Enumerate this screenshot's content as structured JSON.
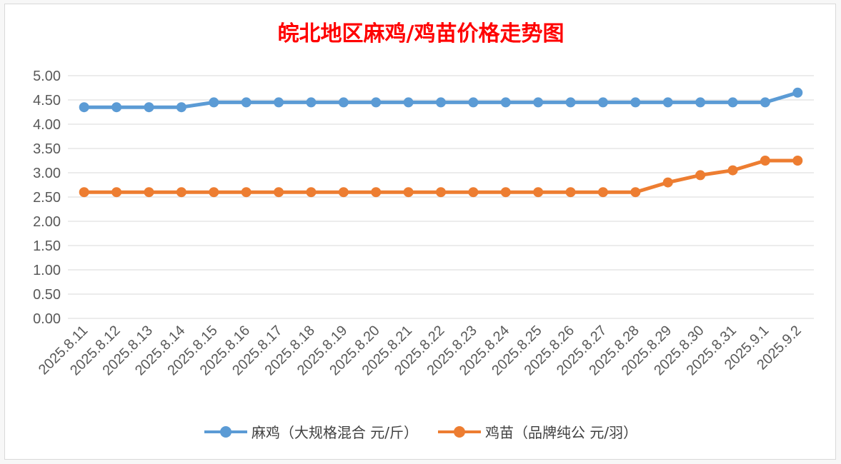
{
  "chart_data": {
    "type": "line",
    "title": "皖北地区麻鸡/鸡苗价格走势图",
    "title_color": "#ff0000",
    "categories": [
      "2025.8.11",
      "2025.8.12",
      "2025.8.13",
      "2025.8.14",
      "2025.8.15",
      "2025.8.16",
      "2025.8.17",
      "2025.8.18",
      "2025.8.19",
      "2025.8.20",
      "2025.8.21",
      "2025.8.22",
      "2025.8.23",
      "2025.8.24",
      "2025.8.25",
      "2025.8.26",
      "2025.8.27",
      "2025.8.28",
      "2025.8.29",
      "2025.8.30",
      "2025.8.31",
      "2025.9.1",
      "2025.9.2"
    ],
    "series": [
      {
        "name": "麻鸡（大规格混合 元/斤）",
        "color": "#5b9bd5",
        "values": [
          4.35,
          4.35,
          4.35,
          4.35,
          4.45,
          4.45,
          4.45,
          4.45,
          4.45,
          4.45,
          4.45,
          4.45,
          4.45,
          4.45,
          4.45,
          4.45,
          4.45,
          4.45,
          4.45,
          4.45,
          4.45,
          4.45,
          4.65
        ]
      },
      {
        "name": "鸡苗（品牌纯公 元/羽）",
        "color": "#ed7d31",
        "values": [
          2.6,
          2.6,
          2.6,
          2.6,
          2.6,
          2.6,
          2.6,
          2.6,
          2.6,
          2.6,
          2.6,
          2.6,
          2.6,
          2.6,
          2.6,
          2.6,
          2.6,
          2.6,
          2.8,
          2.95,
          3.05,
          3.25,
          3.25
        ]
      }
    ],
    "y_ticks": [
      "0.00",
      "0.50",
      "1.00",
      "1.50",
      "2.00",
      "2.50",
      "3.00",
      "3.50",
      "4.00",
      "4.50",
      "5.00"
    ],
    "ylim": [
      0,
      5
    ],
    "xlabel": "",
    "ylabel": "",
    "grid": true,
    "legend_position": "bottom"
  }
}
